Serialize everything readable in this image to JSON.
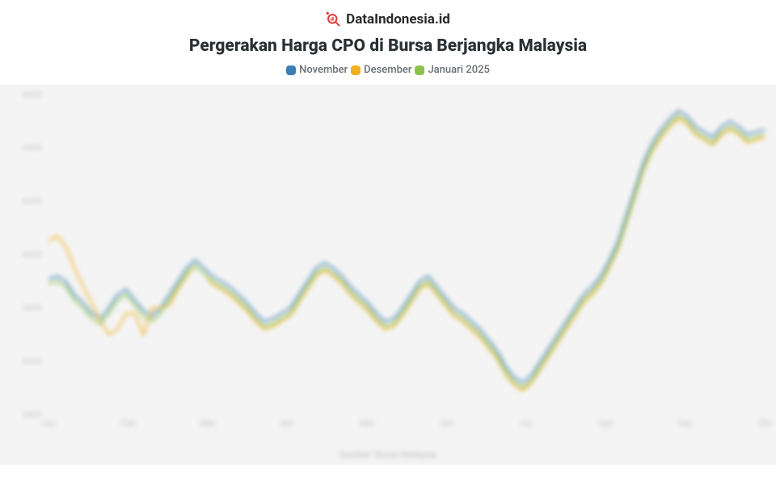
{
  "brand": {
    "name": "DataIndonesia.id",
    "icon_color": "#e03131"
  },
  "title": "Pergerakan Harga CPO di Bursa Berjangka Malaysia",
  "legend": [
    {
      "label": "November",
      "color": "#3a7fb5"
    },
    {
      "label": "Desember",
      "color": "#f2b01e"
    },
    {
      "label": "Januari 2025",
      "color": "#8bc34a"
    }
  ],
  "chart": {
    "type": "line",
    "background_color": "#f4f4f4",
    "plot_bg": "#f4f4f4",
    "ylim": [
      3400,
      4600
    ],
    "ytick_step": 200,
    "yticks": [
      3400,
      3600,
      3800,
      4000,
      4200,
      4400,
      4600
    ],
    "x_labels": [
      "Jan",
      "Feb",
      "Mar",
      "Apr",
      "Mei",
      "Jun",
      "Jul",
      "Agu",
      "Sep",
      "Okt"
    ],
    "footer_text": "Sumber: Bursa Malaysia",
    "line_width": 2.2,
    "tick_fontsize": 11,
    "tick_color_blurred": "#d0d0d0",
    "series": [
      {
        "name": "November",
        "color": "#3a7fb5",
        "values": [
          3910,
          3920,
          3900,
          3850,
          3820,
          3780,
          3760,
          3800,
          3850,
          3870,
          3830,
          3790,
          3770,
          3800,
          3850,
          3900,
          3950,
          3980,
          3950,
          3920,
          3900,
          3880,
          3850,
          3820,
          3780,
          3750,
          3760,
          3780,
          3800,
          3850,
          3900,
          3950,
          3970,
          3950,
          3920,
          3880,
          3850,
          3820,
          3780,
          3750,
          3760,
          3800,
          3850,
          3900,
          3920,
          3880,
          3840,
          3800,
          3780,
          3750,
          3720,
          3680,
          3640,
          3580,
          3540,
          3520,
          3550,
          3600,
          3650,
          3700,
          3750,
          3800,
          3850,
          3880,
          3920,
          3980,
          4050,
          4150,
          4250,
          4350,
          4420,
          4470,
          4510,
          4540,
          4520,
          4480,
          4460,
          4440,
          4480,
          4500,
          4480,
          4450,
          4460,
          4470
        ]
      },
      {
        "name": "Desember",
        "color": "#f2b01e",
        "values": [
          4050,
          4070,
          4030,
          3950,
          3880,
          3820,
          3750,
          3700,
          3720,
          3780,
          3780,
          3700,
          3800,
          3800,
          3810,
          3870,
          3920,
          3960,
          3930,
          3890,
          3870,
          3850,
          3820,
          3790,
          3750,
          3720,
          3730,
          3750,
          3770,
          3820,
          3870,
          3920,
          3940,
          3920,
          3890,
          3850,
          3820,
          3790,
          3750,
          3720,
          3730,
          3770,
          3820,
          3870,
          3890,
          3850,
          3810,
          3770,
          3750,
          3720,
          3690,
          3650,
          3610,
          3550,
          3510,
          3490,
          3520,
          3570,
          3620,
          3670,
          3720,
          3770,
          3820,
          3850,
          3890,
          3950,
          4020,
          4120,
          4220,
          4320,
          4390,
          4440,
          4480,
          4510,
          4490,
          4450,
          4430,
          4410,
          4450,
          4470,
          4450,
          4420,
          4430,
          4440
        ]
      },
      {
        "name": "Januari 2025",
        "color": "#8bc34a",
        "values": [
          3890,
          3900,
          3880,
          3830,
          3800,
          3760,
          3740,
          3780,
          3830,
          3850,
          3810,
          3770,
          3750,
          3780,
          3830,
          3880,
          3930,
          3960,
          3930,
          3900,
          3880,
          3860,
          3830,
          3800,
          3760,
          3730,
          3740,
          3760,
          3780,
          3830,
          3880,
          3930,
          3950,
          3930,
          3900,
          3860,
          3830,
          3800,
          3760,
          3730,
          3740,
          3780,
          3830,
          3880,
          3900,
          3860,
          3820,
          3780,
          3760,
          3730,
          3700,
          3660,
          3620,
          3560,
          3520,
          3500,
          3530,
          3580,
          3630,
          3680,
          3730,
          3780,
          3830,
          3860,
          3900,
          3960,
          4030,
          4130,
          4230,
          4330,
          4400,
          4450,
          4490,
          4520,
          4500,
          4460,
          4440,
          4420,
          4460,
          4480,
          4460,
          4430,
          4440,
          4450
        ]
      }
    ]
  }
}
